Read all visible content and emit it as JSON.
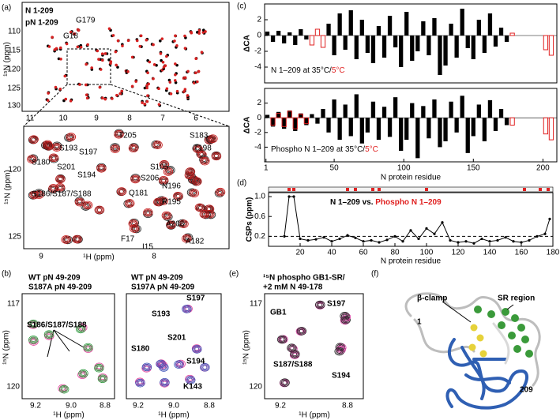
{
  "panels": {
    "a": {
      "label": "(a)",
      "legend": [
        "N 1-209",
        "pN 1-209"
      ],
      "peaks_top": [
        "G179",
        "G18"
      ],
      "ylabel": "¹⁵N (ppm)",
      "xticks": [
        "11",
        "10",
        "9",
        "8",
        "7",
        "6"
      ],
      "yticks": [
        "110",
        "115",
        "120",
        "125",
        "130"
      ],
      "inset": {
        "xticks": [
          "9",
          "8"
        ],
        "yticks": [
          "120",
          "125"
        ],
        "xlabel": "¹H (ppm)",
        "ylabel": "¹⁵N (ppm)",
        "peaks": [
          "T205",
          "S183",
          "S193",
          "S197",
          "T198",
          "S180",
          "S201",
          "S194",
          "S105",
          "S206",
          "S186/S187/S188",
          "Q181",
          "R195",
          "N196",
          "A208",
          "F17",
          "A182",
          "I15"
        ]
      }
    },
    "b": {
      "label": "(b)",
      "left": {
        "legend": [
          "WT pN 49-209",
          "S187A pN 49-209"
        ],
        "peaks": [
          "S186/S187/S188"
        ]
      },
      "right": {
        "legend": [
          "WT pN 49-209",
          "S197A pN 49-209"
        ],
        "peaks": [
          "S193",
          "S197",
          "S201",
          "S180",
          "S194",
          "K143"
        ]
      },
      "xticks": [
        "9.2",
        "9.0",
        "8.8"
      ],
      "yticks": [
        "117",
        "120"
      ],
      "xlabel": "¹H (ppm)",
      "ylabel": "¹⁵N (ppm)"
    },
    "c": {
      "label": "(c)"
    },
    "d": {
      "label": "(d)"
    },
    "e": {
      "label": "(e)",
      "title": [
        "¹⁵N phospho GB1-SR/",
        "+2 mM N 49-178"
      ],
      "peaks": [
        "GB1",
        "S197",
        "S187/S188",
        "S194"
      ],
      "xticks": [
        "9.2",
        "8.8"
      ],
      "yticks": [
        "117",
        "120"
      ],
      "xlabel": "¹H (ppm)",
      "ylabel": "¹⁵N (ppm)"
    },
    "f": {
      "label": "(f)",
      "labels": [
        "β-clamp",
        "SR region",
        "1",
        "209"
      ]
    }
  },
  "chart_data": [
    {
      "type": "bar",
      "ylabel": "ΔCA",
      "annotation": [
        "N 1–209 at 35°C/",
        "5°C"
      ],
      "x": [
        2,
        6,
        10,
        14,
        18,
        22,
        26,
        30,
        34,
        38,
        42,
        46,
        50,
        54,
        58,
        62,
        66,
        70,
        74,
        78,
        82,
        86,
        90,
        94,
        98,
        102,
        106,
        110,
        114,
        118,
        122,
        126,
        130,
        134,
        138,
        142,
        146,
        150,
        154,
        158,
        162,
        166,
        170,
        174,
        178,
        182,
        186,
        190,
        194,
        198,
        202,
        206
      ],
      "series": [
        {
          "color": "#000000",
          "style": "filled",
          "values": [
            0.5,
            -0.8,
            0.6,
            -1,
            0.4,
            -1.2,
            0.8,
            -0.5,
            null,
            null,
            null,
            1.5,
            -2.5,
            2.8,
            -1.8,
            3.2,
            -3,
            2,
            -2.2,
            -3.5,
            1.2,
            -2.8,
            2.5,
            -1.5,
            -4,
            3,
            -3.2,
            -2,
            1.8,
            -2.5,
            2.2,
            -5,
            -3.8,
            1.5,
            -2.8,
            3.4,
            -1.6,
            -3,
            2,
            -2.2,
            2.8,
            -1.4,
            1,
            -0.8,
            null,
            null,
            null,
            null,
            null,
            null,
            null,
            null
          ]
        },
        {
          "color": "#e02020",
          "style": "open",
          "values": [
            null,
            null,
            null,
            null,
            null,
            null,
            null,
            null,
            -1.2,
            0.8,
            -1.5,
            null,
            null,
            null,
            null,
            null,
            null,
            null,
            null,
            null,
            null,
            null,
            null,
            null,
            null,
            null,
            null,
            null,
            null,
            null,
            null,
            null,
            null,
            null,
            null,
            null,
            null,
            null,
            null,
            null,
            null,
            null,
            null,
            null,
            0.3,
            null,
            null,
            null,
            null,
            null,
            -1.8,
            -2.5
          ]
        }
      ],
      "xlim": [
        0,
        210
      ],
      "ylim": [
        -6,
        4
      ],
      "yticks": [
        2,
        0,
        -2,
        -4
      ]
    },
    {
      "type": "bar",
      "ylabel": "ΔCA",
      "annotation": [
        "Phospho N 1–209 at 35°C/",
        "5°C"
      ],
      "xlabel": "N protein residue",
      "x": [
        2,
        6,
        10,
        14,
        18,
        22,
        26,
        30,
        34,
        38,
        42,
        46,
        50,
        54,
        58,
        62,
        66,
        70,
        74,
        78,
        82,
        86,
        90,
        94,
        98,
        102,
        106,
        110,
        114,
        118,
        122,
        126,
        130,
        134,
        138,
        142,
        146,
        150,
        154,
        158,
        162,
        166,
        170,
        174,
        178,
        182,
        186,
        190,
        194,
        198,
        202,
        206
      ],
      "series": [
        {
          "color": "#000000",
          "style": "filled",
          "values": [
            0.4,
            -1.2,
            0.8,
            -1.5,
            1,
            -1.8,
            0.6,
            -1,
            0.5,
            -0.8,
            1.2,
            -2,
            2.5,
            -3,
            1.8,
            -2.5,
            3.2,
            -3.5,
            -2,
            2.2,
            -3,
            1.5,
            -2.6,
            2.8,
            -4.5,
            -3,
            2,
            -5.5,
            1.6,
            -2.8,
            2.5,
            -4,
            -3.2,
            2.2,
            -2,
            3,
            -4.8,
            -2.5,
            1.8,
            -3.2,
            2.4,
            -1.8,
            1.2,
            -1,
            null,
            null,
            null,
            null,
            null,
            null,
            null,
            null
          ]
        },
        {
          "color": "#e02020",
          "style": "open",
          "values": [
            null,
            -1,
            0.6,
            -1.2,
            0.9,
            -1.5,
            0.5,
            -0.8,
            null,
            null,
            null,
            null,
            null,
            null,
            null,
            null,
            null,
            null,
            null,
            null,
            null,
            null,
            null,
            null,
            null,
            null,
            null,
            null,
            null,
            null,
            null,
            null,
            null,
            null,
            null,
            null,
            null,
            null,
            null,
            null,
            null,
            null,
            null,
            null,
            -1,
            null,
            null,
            null,
            null,
            null,
            -2.2,
            -3
          ]
        }
      ],
      "xlim": [
        0,
        210
      ],
      "ylim": [
        -6,
        4
      ],
      "yticks": [
        2,
        0,
        -2,
        -4
      ],
      "xticks": [
        1,
        50,
        100,
        150,
        200
      ]
    },
    {
      "type": "line",
      "ylabel": "CSPs (ppm)",
      "xlabel": "N protein residue",
      "annotation": [
        "N 1–209 vs. ",
        "Phospho N 1–209"
      ],
      "x": [
        10,
        13,
        16,
        20,
        25,
        30,
        35,
        40,
        45,
        50,
        55,
        60,
        65,
        70,
        75,
        80,
        85,
        90,
        95,
        100,
        105,
        110,
        115,
        120,
        125,
        130,
        135,
        140,
        145,
        150,
        155,
        160,
        165,
        170,
        175,
        178
      ],
      "series": [
        {
          "color": "#000000",
          "values": [
            0.2,
            1.0,
            1.0,
            0.15,
            0.12,
            0.14,
            0.18,
            0.1,
            0.15,
            0.22,
            0.17,
            0.1,
            0.12,
            0.08,
            0.13,
            0.2,
            0.1,
            0.32,
            0.15,
            0.36,
            0.25,
            0.48,
            0.12,
            0.08,
            0.1,
            0.06,
            0.15,
            0.1,
            0.12,
            0.18,
            0.1,
            0.08,
            0.12,
            0.2,
            0.25,
            0.55
          ]
        }
      ],
      "threshold": 0.2,
      "markers": {
        "color": "#e02020",
        "x": [
          13,
          16,
          50,
          55,
          66,
          70,
          100,
          162,
          172,
          177
        ]
      },
      "xlim": [
        0,
        180
      ],
      "ylim": [
        0,
        1.08
      ],
      "xticks": [
        20,
        40,
        60,
        80,
        100,
        120,
        140,
        160,
        180
      ],
      "yticks": [
        0.2,
        0.6,
        {
          "value": 1,
          "label": "1.0"
        }
      ]
    }
  ]
}
